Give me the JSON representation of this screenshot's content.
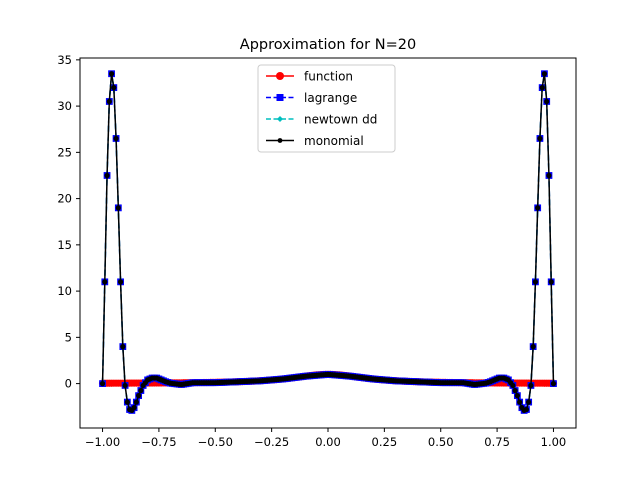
{
  "chart_data": {
    "type": "line",
    "title": "Approximation for N=20",
    "xlabel": "",
    "ylabel": "",
    "xlim": [
      -1.1,
      1.1
    ],
    "ylim": [
      -4.8,
      35.2
    ],
    "x_ticks": [
      -1.0,
      -0.75,
      -0.5,
      -0.25,
      0.0,
      0.25,
      0.5,
      0.75,
      1.0
    ],
    "x_tick_labels": [
      "−1.00",
      "−0.75",
      "−0.50",
      "−0.25",
      "0.00",
      "0.25",
      "0.50",
      "0.75",
      "1.00"
    ],
    "y_ticks": [
      0,
      5,
      10,
      15,
      20,
      25,
      30,
      35
    ],
    "y_tick_labels": [
      "0",
      "5",
      "10",
      "15",
      "20",
      "25",
      "30",
      "35"
    ],
    "grid": false,
    "legend_position": "top-center",
    "series": [
      {
        "name": "function",
        "color": "#ff0000",
        "line_style": "solid",
        "marker": "circle",
        "description_x": [
          -1.0,
          -0.9,
          -0.8,
          -0.7,
          -0.6,
          -0.5,
          -0.4,
          -0.3,
          -0.2,
          -0.1,
          0.0,
          0.1,
          0.2,
          0.3,
          0.4,
          0.5,
          0.6,
          0.7,
          0.8,
          0.9,
          1.0
        ],
        "y": [
          0.038,
          0.047,
          0.059,
          0.075,
          0.1,
          0.138,
          0.2,
          0.308,
          0.5,
          0.8,
          1.0,
          0.8,
          0.5,
          0.308,
          0.2,
          0.138,
          0.1,
          0.075,
          0.059,
          0.047,
          0.038
        ]
      },
      {
        "name": "lagrange",
        "color": "#0000ff",
        "line_style": "dashed",
        "marker": "square",
        "x": [
          -1.0,
          -0.99,
          -0.98,
          -0.97,
          -0.96,
          -0.95,
          -0.94,
          -0.93,
          -0.92,
          -0.91,
          -0.9,
          -0.89,
          -0.88,
          -0.87,
          -0.86,
          -0.85,
          -0.84,
          -0.82,
          -0.8,
          -0.78,
          -0.76,
          -0.74,
          -0.72,
          -0.7,
          -0.65,
          -0.6,
          -0.5,
          -0.4,
          -0.3,
          -0.2,
          -0.1,
          0.0,
          0.1,
          0.2,
          0.3,
          0.4,
          0.5,
          0.6,
          0.65,
          0.7,
          0.72,
          0.74,
          0.76,
          0.78,
          0.8,
          0.82,
          0.84,
          0.85,
          0.86,
          0.87,
          0.88,
          0.89,
          0.9,
          0.91,
          0.92,
          0.93,
          0.94,
          0.95,
          0.96,
          0.97,
          0.98,
          0.99,
          1.0
        ],
        "y": [
          0.0,
          11.0,
          22.5,
          30.5,
          33.5,
          32.0,
          26.5,
          19.0,
          11.0,
          4.0,
          -0.2,
          -2.0,
          -2.8,
          -2.9,
          -2.6,
          -2.0,
          -1.3,
          -0.2,
          0.4,
          0.6,
          0.6,
          0.4,
          0.2,
          0.05,
          -0.1,
          0.1,
          0.1,
          0.2,
          0.3,
          0.5,
          0.8,
          1.0,
          0.8,
          0.5,
          0.3,
          0.2,
          0.1,
          0.1,
          -0.1,
          0.05,
          0.2,
          0.4,
          0.6,
          0.6,
          0.4,
          -0.2,
          -1.3,
          -2.0,
          -2.6,
          -2.9,
          -2.8,
          -2.0,
          -0.2,
          4.0,
          11.0,
          19.0,
          26.5,
          32.0,
          33.5,
          30.5,
          22.5,
          11.0,
          0.0
        ]
      },
      {
        "name": "newtown dd",
        "color": "#00bfbf",
        "line_style": "dashed",
        "marker": "diamond"
      },
      {
        "name": "monomial",
        "color": "#000000",
        "line_style": "solid",
        "marker": "point"
      }
    ]
  }
}
